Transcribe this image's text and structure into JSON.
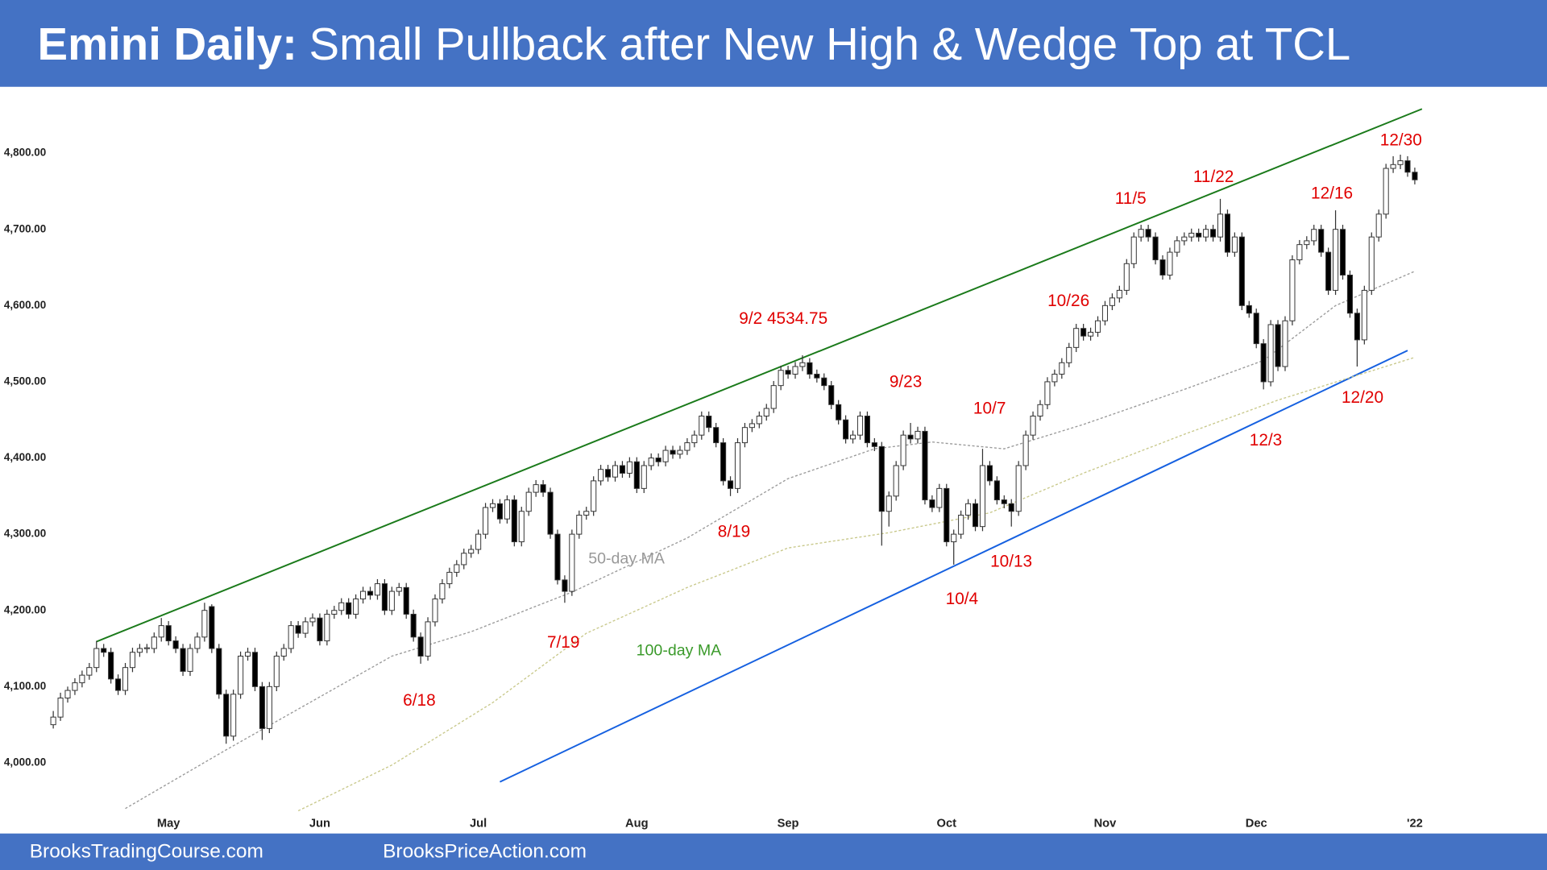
{
  "header": {
    "title_lead": "Emini Daily:",
    "title": "Small Pullback after New High & Wedge Top at TCL"
  },
  "footer": {
    "left": "BrooksTradingCourse.com",
    "right": "BrooksPriceAction.com"
  },
  "chart_data": {
    "type": "candlestick",
    "up_color": "#ffffff",
    "down_color": "#000000",
    "outline_color": "#333333",
    "ylim": [
      3937,
      4878
    ],
    "yticks": [
      {
        "value": 4000,
        "label": "4,000.00"
      },
      {
        "value": 4100,
        "label": "4,100.00"
      },
      {
        "value": 4200,
        "label": "4,200.00"
      },
      {
        "value": 4300,
        "label": "4,300.00"
      },
      {
        "value": 4400,
        "label": "4,400.00"
      },
      {
        "value": 4500,
        "label": "4,500.00"
      },
      {
        "value": 4600,
        "label": "4,600.00"
      },
      {
        "value": 4700,
        "label": "4,700.00"
      },
      {
        "value": 4800,
        "label": "4,800.00"
      }
    ],
    "xlim": [
      0,
      189
    ],
    "xticks": [
      {
        "value": 16,
        "label": "May"
      },
      {
        "value": 37,
        "label": "Jun"
      },
      {
        "value": 59,
        "label": "Jul"
      },
      {
        "value": 81,
        "label": "Aug"
      },
      {
        "value": 102,
        "label": "Sep"
      },
      {
        "value": 124,
        "label": "Oct"
      },
      {
        "value": 146,
        "label": "Nov"
      },
      {
        "value": 167,
        "label": "Dec"
      },
      {
        "value": 189,
        "label": "'22"
      }
    ],
    "candles": [
      [
        4050,
        4068,
        4045,
        4060
      ],
      [
        4060,
        4092,
        4055,
        4085
      ],
      [
        4085,
        4100,
        4079,
        4095
      ],
      [
        4095,
        4111,
        4089,
        4105
      ],
      [
        4105,
        4121,
        4099,
        4115
      ],
      [
        4115,
        4131,
        4109,
        4125
      ],
      [
        4125,
        4160,
        4119,
        4150
      ],
      [
        4150,
        4156,
        4139,
        4145
      ],
      [
        4145,
        4151,
        4104,
        4110
      ],
      [
        4110,
        4116,
        4089,
        4095
      ],
      [
        4095,
        4131,
        4089,
        4125
      ],
      [
        4125,
        4151,
        4119,
        4145
      ],
      [
        4145,
        4156,
        4139,
        4150
      ],
      [
        4150,
        4156,
        4144,
        4151
      ],
      [
        4150,
        4171,
        4144,
        4165
      ],
      [
        4165,
        4190,
        4159,
        4180
      ],
      [
        4180,
        4186,
        4154,
        4160
      ],
      [
        4160,
        4166,
        4144,
        4150
      ],
      [
        4150,
        4156,
        4114,
        4120
      ],
      [
        4120,
        4156,
        4114,
        4150
      ],
      [
        4150,
        4171,
        4144,
        4165
      ],
      [
        4165,
        4210,
        4159,
        4200
      ],
      [
        4205,
        4208,
        4144,
        4150
      ],
      [
        4150,
        4156,
        4084,
        4090
      ],
      [
        4090,
        4096,
        4025,
        4035
      ],
      [
        4035,
        4096,
        4029,
        4090
      ],
      [
        4090,
        4146,
        4084,
        4140
      ],
      [
        4140,
        4151,
        4134,
        4145
      ],
      [
        4145,
        4151,
        4094,
        4100
      ],
      [
        4100,
        4106,
        4030,
        4045
      ],
      [
        4045,
        4106,
        4039,
        4100
      ],
      [
        4100,
        4146,
        4094,
        4140
      ],
      [
        4140,
        4156,
        4134,
        4150
      ],
      [
        4150,
        4186,
        4144,
        4180
      ],
      [
        4180,
        4186,
        4164,
        4170
      ],
      [
        4170,
        4191,
        4164,
        4185
      ],
      [
        4185,
        4196,
        4179,
        4190
      ],
      [
        4190,
        4196,
        4154,
        4160
      ],
      [
        4160,
        4201,
        4154,
        4195
      ],
      [
        4195,
        4206,
        4189,
        4200
      ],
      [
        4200,
        4216,
        4194,
        4210
      ],
      [
        4210,
        4216,
        4189,
        4195
      ],
      [
        4195,
        4221,
        4189,
        4215
      ],
      [
        4215,
        4231,
        4209,
        4225
      ],
      [
        4225,
        4231,
        4214,
        4220
      ],
      [
        4220,
        4241,
        4214,
        4235
      ],
      [
        4235,
        4241,
        4194,
        4200
      ],
      [
        4200,
        4231,
        4194,
        4225
      ],
      [
        4225,
        4236,
        4219,
        4230
      ],
      [
        4230,
        4236,
        4189,
        4195
      ],
      [
        4195,
        4201,
        4159,
        4165
      ],
      [
        4165,
        4171,
        4130,
        4140
      ],
      [
        4140,
        4191,
        4134,
        4185
      ],
      [
        4185,
        4221,
        4179,
        4215
      ],
      [
        4215,
        4241,
        4209,
        4235
      ],
      [
        4235,
        4256,
        4229,
        4250
      ],
      [
        4250,
        4266,
        4244,
        4260
      ],
      [
        4260,
        4281,
        4254,
        4275
      ],
      [
        4275,
        4286,
        4269,
        4280
      ],
      [
        4280,
        4306,
        4274,
        4300
      ],
      [
        4300,
        4341,
        4294,
        4335
      ],
      [
        4335,
        4346,
        4329,
        4340
      ],
      [
        4340,
        4346,
        4314,
        4320
      ],
      [
        4320,
        4351,
        4314,
        4345
      ],
      [
        4345,
        4351,
        4284,
        4290
      ],
      [
        4290,
        4336,
        4284,
        4330
      ],
      [
        4330,
        4361,
        4324,
        4355
      ],
      [
        4355,
        4371,
        4349,
        4365
      ],
      [
        4365,
        4371,
        4349,
        4355
      ],
      [
        4355,
        4361,
        4294,
        4300
      ],
      [
        4300,
        4306,
        4234,
        4240
      ],
      [
        4240,
        4246,
        4210,
        4225
      ],
      [
        4225,
        4306,
        4219,
        4300
      ],
      [
        4300,
        4331,
        4294,
        4325
      ],
      [
        4325,
        4336,
        4319,
        4330
      ],
      [
        4330,
        4376,
        4324,
        4370
      ],
      [
        4370,
        4391,
        4364,
        4385
      ],
      [
        4385,
        4391,
        4369,
        4375
      ],
      [
        4375,
        4396,
        4369,
        4390
      ],
      [
        4390,
        4396,
        4374,
        4380
      ],
      [
        4380,
        4401,
        4374,
        4395
      ],
      [
        4395,
        4401,
        4354,
        4360
      ],
      [
        4360,
        4396,
        4354,
        4390
      ],
      [
        4390,
        4406,
        4384,
        4400
      ],
      [
        4400,
        4406,
        4389,
        4395
      ],
      [
        4395,
        4416,
        4389,
        4410
      ],
      [
        4410,
        4416,
        4399,
        4405
      ],
      [
        4405,
        4416,
        4399,
        4410
      ],
      [
        4410,
        4426,
        4404,
        4420
      ],
      [
        4420,
        4436,
        4414,
        4430
      ],
      [
        4430,
        4461,
        4424,
        4455
      ],
      [
        4455,
        4461,
        4434,
        4440
      ],
      [
        4440,
        4446,
        4414,
        4420
      ],
      [
        4420,
        4426,
        4364,
        4370
      ],
      [
        4370,
        4376,
        4350,
        4360
      ],
      [
        4360,
        4426,
        4354,
        4420
      ],
      [
        4420,
        4446,
        4414,
        4440
      ],
      [
        4440,
        4451,
        4434,
        4445
      ],
      [
        4445,
        4461,
        4439,
        4455
      ],
      [
        4455,
        4471,
        4449,
        4465
      ],
      [
        4465,
        4501,
        4459,
        4495
      ],
      [
        4495,
        4521,
        4489,
        4515
      ],
      [
        4515,
        4521,
        4504,
        4510
      ],
      [
        4510,
        4526,
        4504,
        4520
      ],
      [
        4520,
        4534.75,
        4514,
        4525
      ],
      [
        4525,
        4531,
        4504,
        4510
      ],
      [
        4510,
        4516,
        4499,
        4505
      ],
      [
        4505,
        4511,
        4489,
        4495
      ],
      [
        4495,
        4501,
        4464,
        4470
      ],
      [
        4470,
        4476,
        4444,
        4450
      ],
      [
        4450,
        4456,
        4419,
        4425
      ],
      [
        4425,
        4436,
        4419,
        4430
      ],
      [
        4430,
        4461,
        4424,
        4455
      ],
      [
        4455,
        4461,
        4414,
        4420
      ],
      [
        4420,
        4426,
        4409,
        4415
      ],
      [
        4415,
        4421,
        4285,
        4330
      ],
      [
        4330,
        4356,
        4310,
        4350
      ],
      [
        4350,
        4396,
        4344,
        4390
      ],
      [
        4390,
        4436,
        4384,
        4430
      ],
      [
        4430,
        4446,
        4419,
        4425
      ],
      [
        4425,
        4441,
        4419,
        4435
      ],
      [
        4435,
        4441,
        4339,
        4345
      ],
      [
        4345,
        4351,
        4329,
        4335
      ],
      [
        4335,
        4366,
        4329,
        4360
      ],
      [
        4360,
        4366,
        4284,
        4290
      ],
      [
        4290,
        4306,
        4260,
        4300
      ],
      [
        4300,
        4331,
        4294,
        4325
      ],
      [
        4325,
        4346,
        4319,
        4340
      ],
      [
        4340,
        4346,
        4304,
        4310
      ],
      [
        4310,
        4412,
        4304,
        4390
      ],
      [
        4390,
        4396,
        4364,
        4370
      ],
      [
        4370,
        4376,
        4339,
        4345
      ],
      [
        4345,
        4351,
        4334,
        4340
      ],
      [
        4340,
        4346,
        4310,
        4330
      ],
      [
        4330,
        4396,
        4324,
        4390
      ],
      [
        4390,
        4436,
        4384,
        4430
      ],
      [
        4430,
        4461,
        4424,
        4455
      ],
      [
        4455,
        4476,
        4449,
        4470
      ],
      [
        4470,
        4506,
        4464,
        4500
      ],
      [
        4500,
        4516,
        4494,
        4510
      ],
      [
        4510,
        4531,
        4504,
        4525
      ],
      [
        4525,
        4551,
        4519,
        4545
      ],
      [
        4545,
        4576,
        4539,
        4570
      ],
      [
        4570,
        4576,
        4554,
        4560
      ],
      [
        4560,
        4571,
        4554,
        4565
      ],
      [
        4565,
        4586,
        4559,
        4580
      ],
      [
        4580,
        4606,
        4574,
        4600
      ],
      [
        4600,
        4616,
        4594,
        4610
      ],
      [
        4610,
        4626,
        4604,
        4620
      ],
      [
        4620,
        4661,
        4614,
        4655
      ],
      [
        4655,
        4696,
        4649,
        4690
      ],
      [
        4690,
        4706,
        4684,
        4700
      ],
      [
        4700,
        4706,
        4684,
        4690
      ],
      [
        4690,
        4696,
        4654,
        4660
      ],
      [
        4660,
        4666,
        4634,
        4640
      ],
      [
        4640,
        4676,
        4634,
        4670
      ],
      [
        4670,
        4691,
        4664,
        4685
      ],
      [
        4685,
        4696,
        4679,
        4690
      ],
      [
        4690,
        4701,
        4684,
        4695
      ],
      [
        4695,
        4701,
        4684,
        4690
      ],
      [
        4690,
        4706,
        4684,
        4700
      ],
      [
        4700,
        4706,
        4684,
        4690
      ],
      [
        4690,
        4740,
        4684,
        4720
      ],
      [
        4720,
        4726,
        4664,
        4670
      ],
      [
        4670,
        4696,
        4664,
        4690
      ],
      [
        4690,
        4696,
        4594,
        4600
      ],
      [
        4600,
        4606,
        4584,
        4590
      ],
      [
        4590,
        4596,
        4544,
        4550
      ],
      [
        4550,
        4556,
        4490,
        4500
      ],
      [
        4500,
        4581,
        4494,
        4575
      ],
      [
        4575,
        4581,
        4514,
        4520
      ],
      [
        4520,
        4586,
        4514,
        4580
      ],
      [
        4580,
        4666,
        4574,
        4660
      ],
      [
        4660,
        4686,
        4654,
        4680
      ],
      [
        4680,
        4691,
        4674,
        4685
      ],
      [
        4685,
        4706,
        4679,
        4700
      ],
      [
        4700,
        4706,
        4664,
        4670
      ],
      [
        4670,
        4676,
        4614,
        4620
      ],
      [
        4620,
        4725,
        4614,
        4700
      ],
      [
        4700,
        4706,
        4634,
        4640
      ],
      [
        4640,
        4646,
        4584,
        4590
      ],
      [
        4590,
        4596,
        4520,
        4555
      ],
      [
        4555,
        4626,
        4549,
        4620
      ],
      [
        4620,
        4696,
        4614,
        4690
      ],
      [
        4690,
        4726,
        4684,
        4720
      ],
      [
        4720,
        4786,
        4714,
        4780
      ],
      [
        4780,
        4796,
        4774,
        4785
      ],
      [
        4785,
        4798,
        4779,
        4790
      ],
      [
        4790,
        4796,
        4769,
        4775
      ],
      [
        4775,
        4781,
        4759,
        4765
      ]
    ],
    "moving_averages": [
      {
        "name": "50-day MA",
        "color": "#999999",
        "x": [
          10,
          24,
          47,
          58,
          72,
          88,
          102,
          114,
          122,
          132,
          143,
          157,
          168,
          178,
          189
        ],
        "values": [
          3940,
          4017,
          4140,
          4172,
          4224,
          4295,
          4373,
          4412,
          4421,
          4412,
          4444,
          4490,
          4528,
          4600,
          4645
        ]
      },
      {
        "name": "100-day MA",
        "color": "#c8c88a",
        "label_color": "#3a9a2a",
        "x": [
          34,
          47,
          61,
          74,
          88,
          102,
          116,
          130,
          143,
          157,
          170,
          189
        ],
        "values": [
          3937,
          3997,
          4079,
          4170,
          4230,
          4282,
          4302,
          4328,
          4380,
          4431,
          4476,
          4532
        ]
      }
    ],
    "trendlines": [
      {
        "color": "#1a7a1a",
        "x": [
          6,
          190
        ],
        "values": [
          4159,
          4858
        ]
      },
      {
        "color": "#1560e0",
        "x": [
          62,
          188
        ],
        "values": [
          3975,
          4541
        ]
      }
    ],
    "annotations": [
      "12/30",
      "11/22",
      "11/5",
      "12/16",
      "10/26",
      "9/2 4534.75",
      "9/23",
      "10/7",
      "12/20",
      "12/3",
      "8/19",
      "10/13",
      "10/4",
      "7/19",
      "6/18"
    ]
  }
}
